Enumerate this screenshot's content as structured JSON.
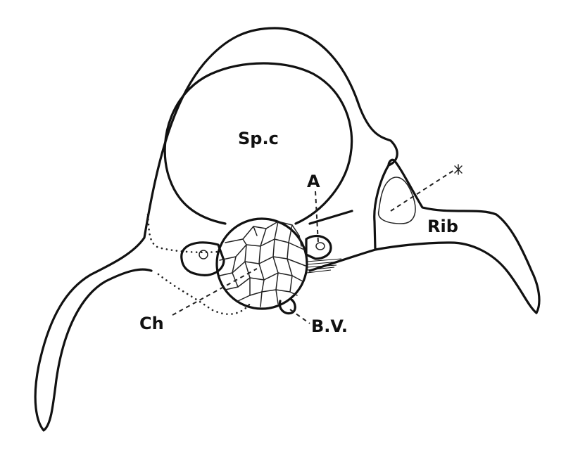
{
  "labels": {
    "spinal_canal": "Sp.c",
    "a": "A",
    "rib": "Rib",
    "ch": "Ch",
    "bv": "B.V."
  },
  "colors": {
    "ink": "#111111",
    "paper": "#ffffff"
  }
}
